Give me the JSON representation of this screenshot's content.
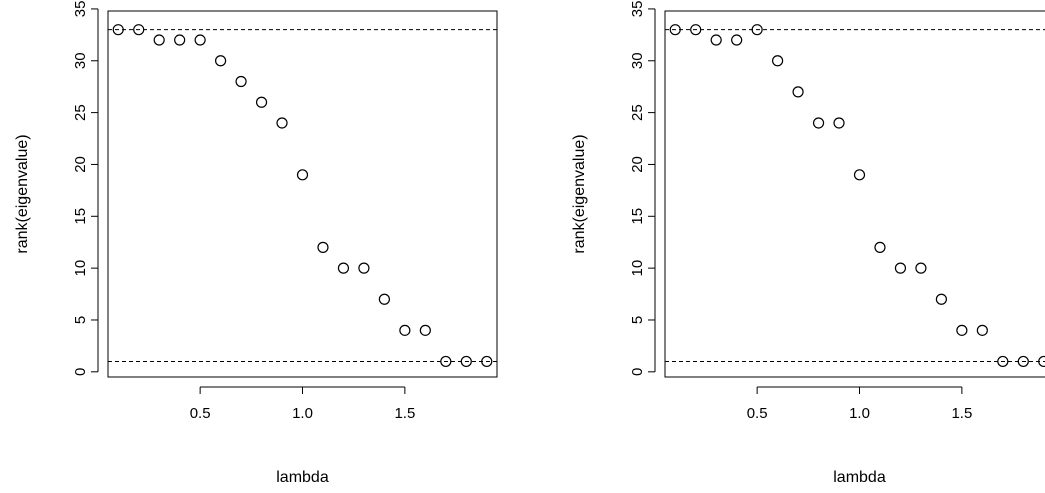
{
  "chart_data": [
    {
      "type": "scatter",
      "xlabel": "lambda",
      "ylabel": "rank(eigenvalue)",
      "xlim": [
        0.05,
        1.95
      ],
      "ylim": [
        -0.5,
        34.8
      ],
      "x_ticks": [
        0.5,
        1.0,
        1.5
      ],
      "x_tick_labels": [
        "0.5",
        "1.0",
        "1.5"
      ],
      "y_ticks": [
        0,
        5,
        10,
        15,
        20,
        25,
        30,
        35
      ],
      "y_tick_labels": [
        "0",
        "5",
        "10",
        "15",
        "20",
        "25",
        "30",
        "35"
      ],
      "reference_lines": [
        33,
        1
      ],
      "grid": false,
      "x": [
        0.1,
        0.2,
        0.3,
        0.4,
        0.5,
        0.6,
        0.7,
        0.8,
        0.9,
        1.0,
        1.1,
        1.2,
        1.3,
        1.4,
        1.5,
        1.6,
        1.7,
        1.8,
        1.9
      ],
      "y": [
        33,
        33,
        32,
        32,
        32,
        30,
        28,
        26,
        24,
        19,
        12,
        10,
        10,
        7,
        4,
        4,
        1,
        1,
        1
      ]
    },
    {
      "type": "scatter",
      "xlabel": "lambda",
      "ylabel": "rank(eigenvalue)",
      "xlim": [
        0.05,
        1.95
      ],
      "ylim": [
        -0.5,
        34.8
      ],
      "x_ticks": [
        0.5,
        1.0,
        1.5
      ],
      "x_tick_labels": [
        "0.5",
        "1.0",
        "1.5"
      ],
      "y_ticks": [
        0,
        5,
        10,
        15,
        20,
        25,
        30,
        35
      ],
      "y_tick_labels": [
        "0",
        "5",
        "10",
        "15",
        "20",
        "25",
        "30",
        "35"
      ],
      "reference_lines": [
        33,
        1
      ],
      "grid": false,
      "x": [
        0.1,
        0.2,
        0.3,
        0.4,
        0.5,
        0.6,
        0.7,
        0.8,
        0.9,
        1.0,
        1.1,
        1.2,
        1.3,
        1.4,
        1.5,
        1.6,
        1.7,
        1.8,
        1.9
      ],
      "y": [
        33,
        33,
        32,
        32,
        33,
        30,
        27,
        24,
        24,
        19,
        12,
        10,
        10,
        7,
        4,
        4,
        1,
        1,
        1
      ]
    }
  ]
}
